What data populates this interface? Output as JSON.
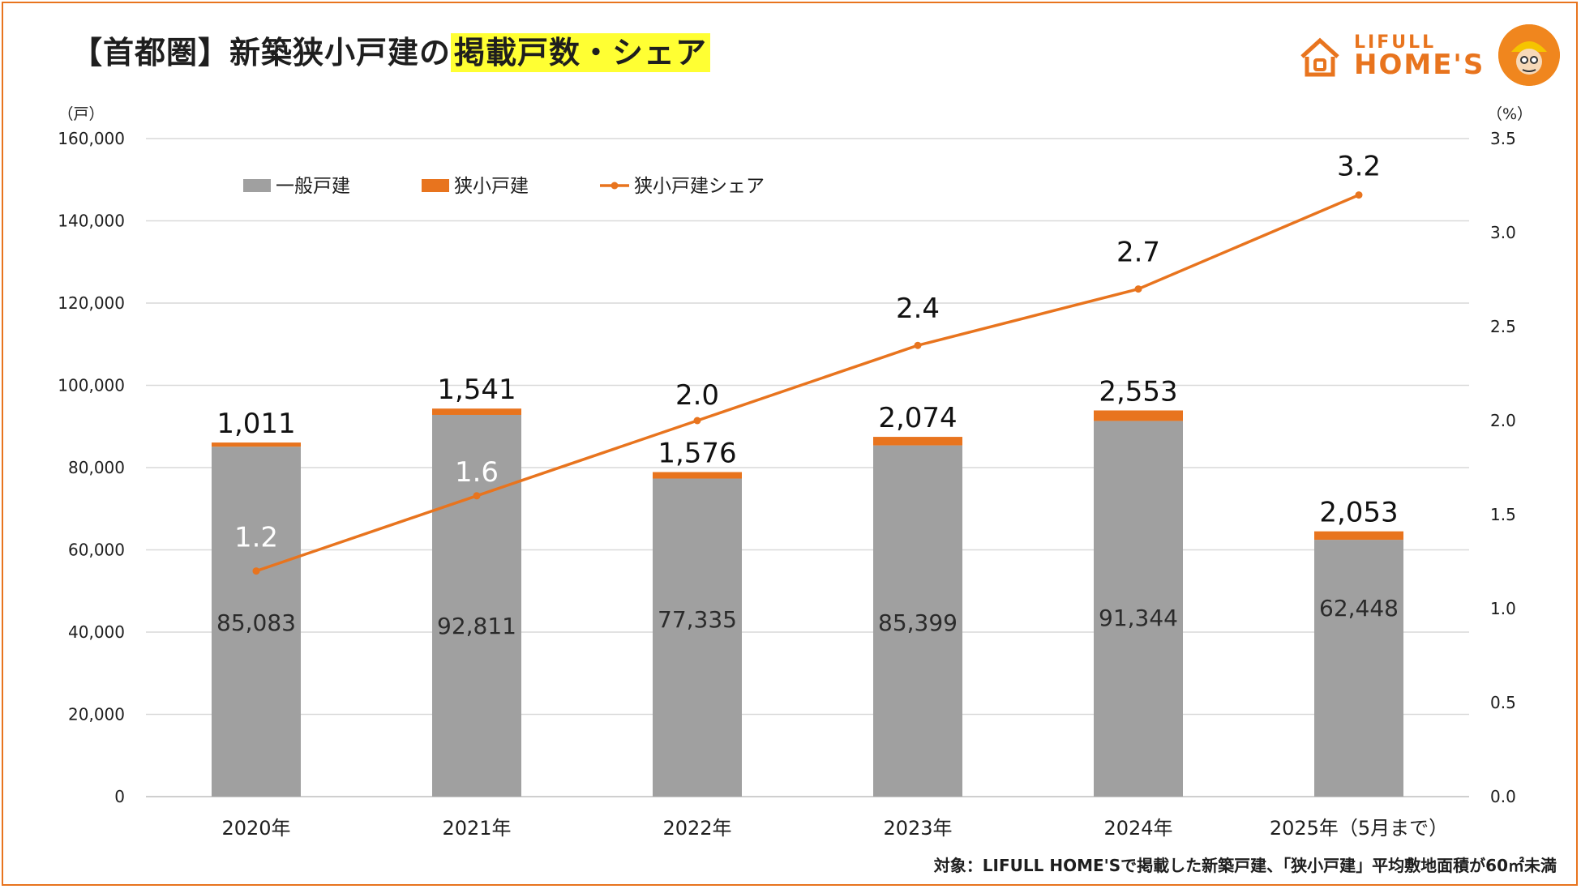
{
  "title": {
    "part1": "【首都圏】新築狭小戸建の",
    "part2": "掲載戸数・シェア"
  },
  "logo": {
    "small": "LIFULL",
    "big": "HOME'S",
    "icon": "house-logo-icon",
    "mascot": "mascot-icon"
  },
  "footnote": "対象：LIFULL HOME'Sで掲載した新築戸建、「狭小戸建」平均敷地面積が60㎡未満",
  "colors": {
    "general": "#a0a0a0",
    "small": "#e8741e",
    "share": "#e8741e",
    "accent": "#e8741e"
  },
  "chart_data": {
    "type": "bar",
    "stacked": true,
    "categories": [
      "2020年",
      "2021年",
      "2022年",
      "2023年",
      "2024年",
      "2025年（5月まで）"
    ],
    "series": [
      {
        "name": "一般戸建",
        "axis": "left",
        "values": [
          85083,
          92811,
          77335,
          85399,
          91344,
          62448
        ],
        "labels": [
          "85,083",
          "92,811",
          "77,335",
          "85,399",
          "91,344",
          "62,448"
        ]
      },
      {
        "name": "狭小戸建",
        "axis": "left",
        "values": [
          1011,
          1541,
          1576,
          2074,
          2553,
          2053
        ],
        "labels": [
          "1,011",
          "1,541",
          "1,576",
          "2,074",
          "2,553",
          "2,053"
        ]
      },
      {
        "name": "狭小戸建シェア",
        "type": "line",
        "axis": "right",
        "values": [
          1.2,
          1.6,
          2.0,
          2.4,
          2.7,
          3.2
        ],
        "labels": [
          "1.2",
          "1.6",
          "2.0",
          "2.4",
          "2.7",
          "3.2"
        ]
      }
    ],
    "ylim": [
      0,
      160000
    ],
    "y2lim": [
      0,
      3.5
    ],
    "y_unit": "（戸）",
    "y2_unit": "（%）",
    "y_ticks": [
      "0",
      "20,000",
      "40,000",
      "60,000",
      "80,000",
      "100,000",
      "120,000",
      "140,000",
      "160,000"
    ],
    "y2_ticks": [
      "0.0",
      "0.5",
      "1.0",
      "1.5",
      "2.0",
      "2.5",
      "3.0",
      "3.5"
    ],
    "legend_position": "top-left",
    "grid": true
  }
}
